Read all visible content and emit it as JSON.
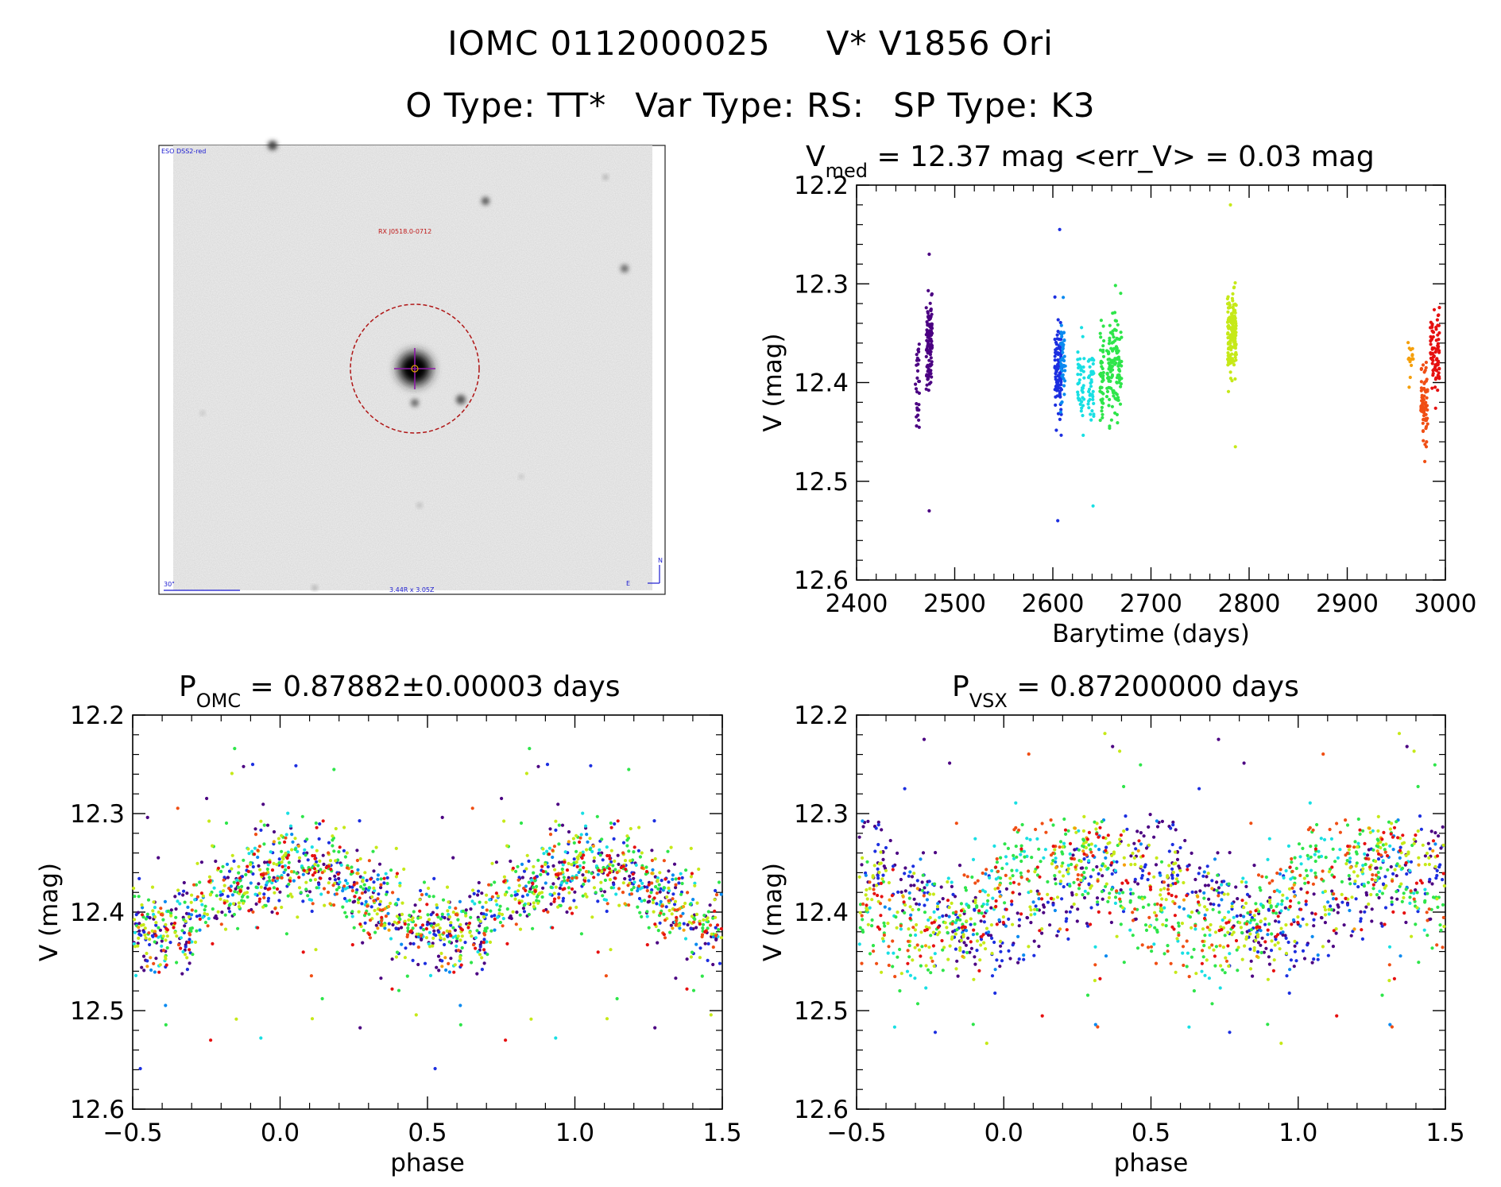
{
  "header": {
    "ids": [
      "IOMC 0112000025",
      "V* V1856 Ori"
    ],
    "types": [
      "O Type: TT*",
      "Var Type: RS:",
      "SP Type: K3"
    ]
  },
  "finder_chart": {
    "survey_label": "ESO DSS2-red",
    "target_label": "RX J0518.0-0712",
    "scale_label": "30\"",
    "center_label": "3.44R x 3.05Z",
    "north_label": "N",
    "east_label": "E"
  },
  "colors": {
    "chart_palette": [
      "#4b0082",
      "#1c2fe0",
      "#0a8af0",
      "#18dfe3",
      "#2ee54a",
      "#8ef22d",
      "#c6e918",
      "#f59f0a",
      "#f04e14",
      "#e61010"
    ],
    "finder_circle": "#b01515",
    "crosshair": "#8e1aa8",
    "finder_text_red": "#c01818",
    "finder_text_blue": "#1a1ad0"
  },
  "chart_data": [
    {
      "type": "scatter",
      "title_main": "V",
      "title_sub": "med",
      "title_rest": " = 12.37 mag <err_V> = 0.03 mag",
      "xlabel": "Barytime (days)",
      "ylabel": "V (mag)",
      "xlim": [
        2400,
        3000
      ],
      "ylim": [
        12.6,
        12.2
      ],
      "xticks": [
        "2400",
        "2500",
        "2600",
        "2700",
        "2800",
        "2900",
        "3000"
      ],
      "yticks": [
        "12.2",
        "12.3",
        "12.4",
        "12.5",
        "12.6"
      ],
      "series": [
        {
          "name": "g1",
          "x_range": [
            2460,
            2464
          ],
          "v_center": 12.41,
          "v_spread": 0.05,
          "color_index": 0,
          "n": 28
        },
        {
          "name": "g2",
          "x_range": [
            2471,
            2477
          ],
          "v_center": 12.36,
          "v_spread": 0.04,
          "color_index": 0,
          "n": 110
        },
        {
          "name": "g3",
          "x_range": [
            2602,
            2609
          ],
          "v_center": 12.39,
          "v_spread": 0.04,
          "color_index": 1,
          "n": 110
        },
        {
          "name": "g4",
          "x_range": [
            2608,
            2613
          ],
          "v_center": 12.37,
          "v_spread": 0.04,
          "color_index": 2,
          "n": 40
        },
        {
          "name": "g5",
          "x_range": [
            2625,
            2632
          ],
          "v_center": 12.4,
          "v_spread": 0.035,
          "color_index": 3,
          "n": 40
        },
        {
          "name": "g6",
          "x_range": [
            2636,
            2642
          ],
          "v_center": 12.4,
          "v_spread": 0.04,
          "color_index": 3,
          "n": 40
        },
        {
          "name": "g7",
          "x_range": [
            2648,
            2652
          ],
          "v_center": 12.39,
          "v_spread": 0.04,
          "color_index": 4,
          "n": 40
        },
        {
          "name": "g8",
          "x_range": [
            2655,
            2670
          ],
          "v_center": 12.38,
          "v_spread": 0.05,
          "color_index": 4,
          "n": 130
        },
        {
          "name": "g9",
          "x_range": [
            2778,
            2787
          ],
          "v_center": 12.35,
          "v_spread": 0.035,
          "color_index": 6,
          "n": 170
        },
        {
          "name": "g10",
          "x_range": [
            2962,
            2968
          ],
          "v_center": 12.37,
          "v_spread": 0.02,
          "color_index": 7,
          "n": 14
        },
        {
          "name": "g11",
          "x_range": [
            2975,
            2982
          ],
          "v_center": 12.42,
          "v_spread": 0.035,
          "color_index": 8,
          "n": 70
        },
        {
          "name": "g12",
          "x_range": [
            2984,
            2994
          ],
          "v_center": 12.37,
          "v_spread": 0.04,
          "color_index": 9,
          "n": 80
        }
      ],
      "outliers": [
        {
          "x": 2605,
          "v": 12.54,
          "color_index": 1
        },
        {
          "x": 2607,
          "v": 12.245,
          "color_index": 1
        },
        {
          "x": 2641,
          "v": 12.525,
          "color_index": 3
        },
        {
          "x": 2781,
          "v": 12.22,
          "color_index": 6
        },
        {
          "x": 2786,
          "v": 12.465,
          "color_index": 6
        },
        {
          "x": 2474,
          "v": 12.53,
          "color_index": 0
        },
        {
          "x": 2474,
          "v": 12.27,
          "color_index": 0
        },
        {
          "x": 2979,
          "v": 12.48,
          "color_index": 8
        }
      ]
    },
    {
      "type": "scatter",
      "title_main": "P",
      "title_sub": "OMC",
      "title_rest": " = 0.87882±0.00003 days",
      "period_days": 0.87882,
      "xlabel": "phase",
      "ylabel": "V (mag)",
      "xlim": [
        -0.5,
        1.5
      ],
      "ylim": [
        12.6,
        12.2
      ],
      "xticks": [
        "−0.5",
        "0.0",
        "0.5",
        "1.0",
        "1.5"
      ],
      "yticks": [
        "12.2",
        "12.3",
        "12.4",
        "12.5",
        "12.6"
      ],
      "light_curve": {
        "mean": 12.385,
        "amplitude": 0.035,
        "max_phase": 0.05
      }
    },
    {
      "type": "scatter",
      "title_main": "P",
      "title_sub": "VSX",
      "title_rest": " = 0.87200000 days",
      "period_days": 0.872,
      "xlabel": "phase",
      "ylabel": "V (mag)",
      "xlim": [
        -0.5,
        1.5
      ],
      "ylim": [
        12.6,
        12.2
      ],
      "xticks": [
        "−0.5",
        "0.0",
        "0.5",
        "1.0",
        "1.5"
      ],
      "yticks": [
        "12.2",
        "12.3",
        "12.4",
        "12.5",
        "12.6"
      ],
      "light_curve": {
        "mean": 12.385,
        "amplitude": 0.04,
        "max_phase": 0.5
      },
      "group_phase_shifts": [
        0.0,
        0.05,
        0.12,
        0.9,
        0.85,
        0.78,
        0.35,
        0.42,
        0.9,
        0.45
      ]
    }
  ]
}
